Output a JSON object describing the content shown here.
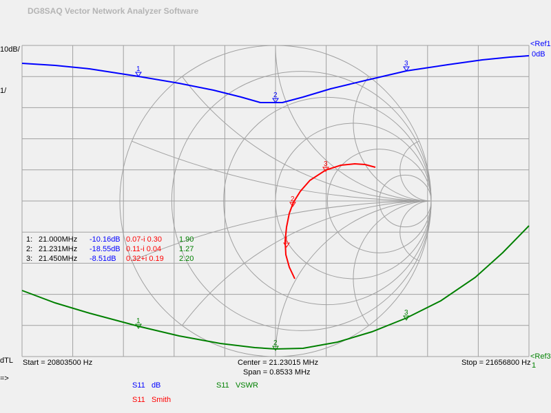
{
  "title": "DG8SAQ Vector Network Analyzer Software",
  "left_labels": {
    "scale1": "10dB/",
    "scale2": "1/",
    "dtl": "dTL",
    "prompt": "=>"
  },
  "right_labels": {
    "ref1": "<Ref1",
    "ref1_val": "0dB",
    "ref3": "<Ref3",
    "ref3_val": "1"
  },
  "footer": {
    "start": "Start = 20803500 Hz",
    "center": "Center = 21.23015 MHz",
    "span": "Span = 0.8533 MHz",
    "stop": "Stop = 21656800 Hz"
  },
  "markers": [
    {
      "n": "1:",
      "freq": "21.000MHz",
      "db": "-10.16dB",
      "smith": "0.07-i 0.30",
      "vswr": "1.90"
    },
    {
      "n": "2:",
      "freq": "21.231MHz",
      "db": "-18.55dB",
      "smith": "0.11-i 0.04",
      "vswr": "1.27"
    },
    {
      "n": "3:",
      "freq": "21.450MHz",
      "db": "-8.51dB",
      "smith": "0.32+i 0.19",
      "vswr": "2.20"
    }
  ],
  "legend": {
    "s11_db": {
      "param": "S11",
      "fmt": "dB"
    },
    "s11_smith": {
      "param": "S11",
      "fmt": "Smith"
    },
    "s11_vswr": {
      "param": "S11",
      "fmt": "VSWR"
    }
  },
  "marker_labels": [
    "1",
    "2",
    "3"
  ],
  "colors": {
    "db": "#0000ff",
    "smith": "#ff0000",
    "vswr": "#008000",
    "grid": "#a0a0a0"
  }
}
